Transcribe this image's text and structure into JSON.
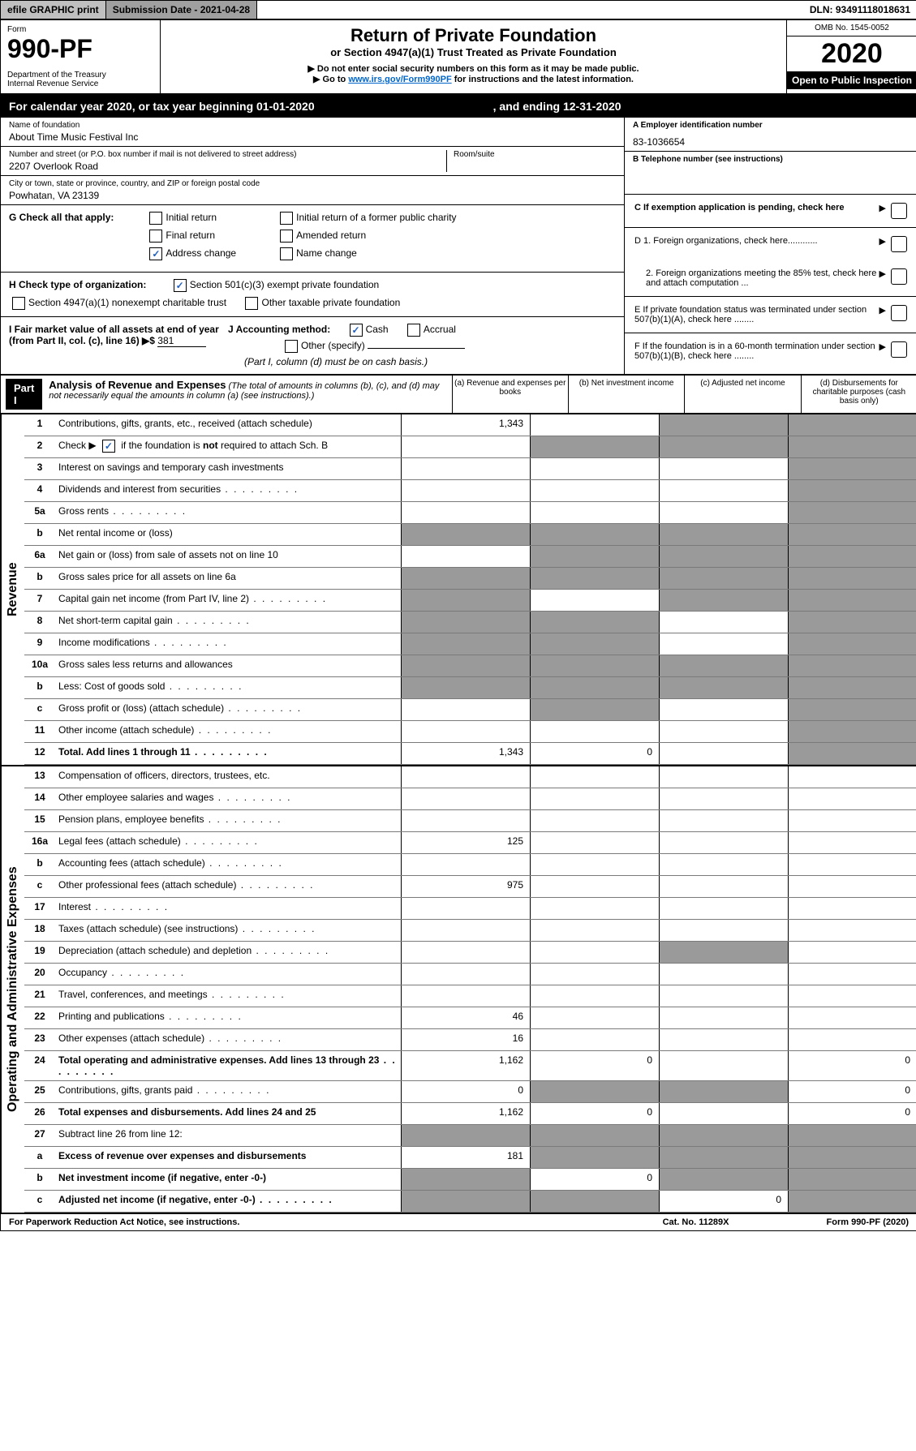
{
  "topbar": {
    "efile": "efile GRAPHIC print",
    "submission": "Submission Date - 2021-04-28",
    "dln": "DLN: 93491118018631"
  },
  "header": {
    "form_label": "Form",
    "form_num": "990-PF",
    "dept": "Department of the Treasury\nInternal Revenue Service",
    "title": "Return of Private Foundation",
    "subtitle": "or Section 4947(a)(1) Trust Treated as Private Foundation",
    "instr1": "▶ Do not enter social security numbers on this form as it may be made public.",
    "instr2_prefix": "▶ Go to ",
    "instr2_link": "www.irs.gov/Form990PF",
    "instr2_suffix": " for instructions and the latest information.",
    "omb": "OMB No. 1545-0052",
    "year": "2020",
    "inspection": "Open to Public Inspection"
  },
  "calendar": {
    "text": "For calendar year 2020, or tax year beginning 01-01-2020",
    "ending": ", and ending 12-31-2020"
  },
  "foundation": {
    "name_label": "Name of foundation",
    "name": "About Time Music Festival Inc",
    "street_label": "Number and street (or P.O. box number if mail is not delivered to street address)",
    "street": "2207 Overlook Road",
    "room_label": "Room/suite",
    "city_label": "City or town, state or province, country, and ZIP or foreign postal code",
    "city": "Powhatan, VA  23139",
    "ein_label": "A Employer identification number",
    "ein": "83-1036654",
    "phone_label": "B Telephone number (see instructions)",
    "exemption_label": "C If exemption application is pending, check here"
  },
  "check_g": {
    "label": "G Check all that apply:",
    "initial_return": "Initial return",
    "final_return": "Final return",
    "address_change": "Address change",
    "initial_former": "Initial return of a former public charity",
    "amended": "Amended return",
    "name_change": "Name change"
  },
  "check_h": {
    "label": "H Check type of organization:",
    "sec501": "Section 501(c)(3) exempt private foundation",
    "sec4947": "Section 4947(a)(1) nonexempt charitable trust",
    "other_taxable": "Other taxable private foundation"
  },
  "section_d": {
    "d1": "D 1. Foreign organizations, check here............",
    "d2": "2. Foreign organizations meeting the 85% test, check here and attach computation ...",
    "e": "E If private foundation status was terminated under section 507(b)(1)(A), check here ........",
    "f": "F If the foundation is in a 60-month termination under section 507(b)(1)(B), check here ........"
  },
  "accounting": {
    "i_label": "I Fair market value of all assets at end of year (from Part II, col. (c), line 16) ▶$",
    "i_value": "381",
    "j_label": "J Accounting method:",
    "cash": "Cash",
    "accrual": "Accrual",
    "other": "Other (specify)",
    "note": "(Part I, column (d) must be on cash basis.)"
  },
  "part1": {
    "label": "Part I",
    "heading": "Analysis of Revenue and Expenses",
    "heading_note": " (The total of amounts in columns (b), (c), and (d) may not necessarily equal the amounts in column (a) (see instructions).)",
    "col_a": "(a)   Revenue and expenses per books",
    "col_b": "(b)   Net investment income",
    "col_c": "(c)   Adjusted net income",
    "col_d": "(d)   Disbursements for charitable purposes (cash basis only)"
  },
  "vertical": {
    "revenue": "Revenue",
    "expenses": "Operating and Administrative Expenses"
  },
  "rows": [
    {
      "num": "1",
      "desc": "Contributions, gifts, grants, etc., received (attach schedule)",
      "a": "1,343",
      "b": "",
      "c": "s",
      "d": "s"
    },
    {
      "num": "2",
      "desc": "Check ▶ ☑ if the foundation is not required to attach Sch. B",
      "a": "",
      "b": "s",
      "c": "s",
      "d": "s",
      "bold_not": true
    },
    {
      "num": "3",
      "desc": "Interest on savings and temporary cash investments",
      "a": "",
      "b": "",
      "c": "",
      "d": "s"
    },
    {
      "num": "4",
      "desc": "Dividends and interest from securities",
      "a": "",
      "b": "",
      "c": "",
      "d": "s",
      "dots": true
    },
    {
      "num": "5a",
      "desc": "Gross rents",
      "a": "",
      "b": "",
      "c": "",
      "d": "s",
      "dots": true
    },
    {
      "num": "b",
      "desc": "Net rental income or (loss)",
      "a": "s",
      "b": "s",
      "c": "s",
      "d": "s"
    },
    {
      "num": "6a",
      "desc": "Net gain or (loss) from sale of assets not on line 10",
      "a": "",
      "b": "s",
      "c": "s",
      "d": "s"
    },
    {
      "num": "b",
      "desc": "Gross sales price for all assets on line 6a",
      "a": "s",
      "b": "s",
      "c": "s",
      "d": "s"
    },
    {
      "num": "7",
      "desc": "Capital gain net income (from Part IV, line 2)",
      "a": "s",
      "b": "",
      "c": "s",
      "d": "s",
      "dots": true
    },
    {
      "num": "8",
      "desc": "Net short-term capital gain",
      "a": "s",
      "b": "s",
      "c": "",
      "d": "s",
      "dots": true
    },
    {
      "num": "9",
      "desc": "Income modifications",
      "a": "s",
      "b": "s",
      "c": "",
      "d": "s",
      "dots": true
    },
    {
      "num": "10a",
      "desc": "Gross sales less returns and allowances",
      "a": "s",
      "b": "s",
      "c": "s",
      "d": "s"
    },
    {
      "num": "b",
      "desc": "Less: Cost of goods sold",
      "a": "s",
      "b": "s",
      "c": "s",
      "d": "s",
      "dots": true
    },
    {
      "num": "c",
      "desc": "Gross profit or (loss) (attach schedule)",
      "a": "",
      "b": "s",
      "c": "",
      "d": "s",
      "dots": true
    },
    {
      "num": "11",
      "desc": "Other income (attach schedule)",
      "a": "",
      "b": "",
      "c": "",
      "d": "s",
      "dots": true
    },
    {
      "num": "12",
      "desc": "Total. Add lines 1 through 11",
      "a": "1,343",
      "b": "0",
      "c": "",
      "d": "s",
      "bold": true,
      "dots": true
    }
  ],
  "expense_rows": [
    {
      "num": "13",
      "desc": "Compensation of officers, directors, trustees, etc.",
      "a": "",
      "b": "",
      "c": "",
      "d": ""
    },
    {
      "num": "14",
      "desc": "Other employee salaries and wages",
      "a": "",
      "b": "",
      "c": "",
      "d": "",
      "dots": true
    },
    {
      "num": "15",
      "desc": "Pension plans, employee benefits",
      "a": "",
      "b": "",
      "c": "",
      "d": "",
      "dots": true
    },
    {
      "num": "16a",
      "desc": "Legal fees (attach schedule)",
      "a": "125",
      "b": "",
      "c": "",
      "d": "",
      "dots": true
    },
    {
      "num": "b",
      "desc": "Accounting fees (attach schedule)",
      "a": "",
      "b": "",
      "c": "",
      "d": "",
      "dots": true
    },
    {
      "num": "c",
      "desc": "Other professional fees (attach schedule)",
      "a": "975",
      "b": "",
      "c": "",
      "d": "",
      "dots": true
    },
    {
      "num": "17",
      "desc": "Interest",
      "a": "",
      "b": "",
      "c": "",
      "d": "",
      "dots": true
    },
    {
      "num": "18",
      "desc": "Taxes (attach schedule) (see instructions)",
      "a": "",
      "b": "",
      "c": "",
      "d": "",
      "dots": true
    },
    {
      "num": "19",
      "desc": "Depreciation (attach schedule) and depletion",
      "a": "",
      "b": "",
      "c": "s",
      "d": "",
      "dots": true
    },
    {
      "num": "20",
      "desc": "Occupancy",
      "a": "",
      "b": "",
      "c": "",
      "d": "",
      "dots": true
    },
    {
      "num": "21",
      "desc": "Travel, conferences, and meetings",
      "a": "",
      "b": "",
      "c": "",
      "d": "",
      "dots": true
    },
    {
      "num": "22",
      "desc": "Printing and publications",
      "a": "46",
      "b": "",
      "c": "",
      "d": "",
      "dots": true
    },
    {
      "num": "23",
      "desc": "Other expenses (attach schedule)",
      "a": "16",
      "b": "",
      "c": "",
      "d": "",
      "dots": true
    },
    {
      "num": "24",
      "desc": "Total operating and administrative expenses. Add lines 13 through 23",
      "a": "1,162",
      "b": "0",
      "c": "",
      "d": "0",
      "bold": true,
      "dots": true
    },
    {
      "num": "25",
      "desc": "Contributions, gifts, grants paid",
      "a": "0",
      "b": "s",
      "c": "s",
      "d": "0",
      "dots": true
    },
    {
      "num": "26",
      "desc": "Total expenses and disbursements. Add lines 24 and 25",
      "a": "1,162",
      "b": "0",
      "c": "",
      "d": "0",
      "bold": true
    },
    {
      "num": "27",
      "desc": "Subtract line 26 from line 12:",
      "a": "s",
      "b": "s",
      "c": "s",
      "d": "s"
    },
    {
      "num": "a",
      "desc": "Excess of revenue over expenses and disbursements",
      "a": "181",
      "b": "s",
      "c": "s",
      "d": "s",
      "bold": true
    },
    {
      "num": "b",
      "desc": "Net investment income (if negative, enter -0-)",
      "a": "s",
      "b": "0",
      "c": "s",
      "d": "s",
      "bold": true
    },
    {
      "num": "c",
      "desc": "Adjusted net income (if negative, enter -0-)",
      "a": "s",
      "b": "s",
      "c": "0",
      "d": "s",
      "bold": true,
      "dots": true
    }
  ],
  "footer": {
    "left": "For Paperwork Reduction Act Notice, see instructions.",
    "mid": "Cat. No. 11289X",
    "right": "Form 990-PF (2020)"
  }
}
